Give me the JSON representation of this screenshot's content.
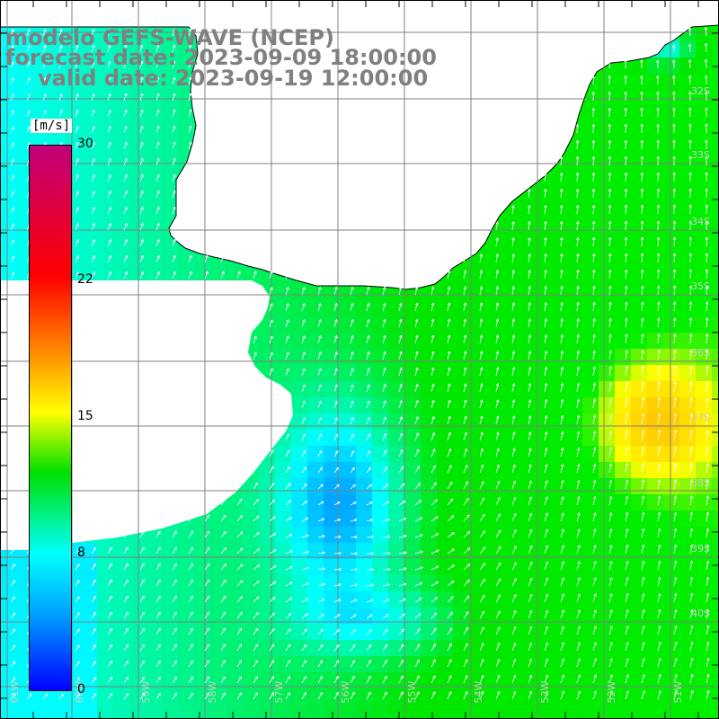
{
  "title": {
    "line1": "modelo GEFS-WAVE (NCEP)",
    "line2": "forecast date: 2023-09-09 18:00:00",
    "line3": "valid date: 2023-09-19 12:00:00"
  },
  "colorbar": {
    "unit": "[m/s]",
    "ticks": [
      "30",
      "22",
      "15",
      "8",
      "0"
    ],
    "range": [
      0,
      30
    ],
    "colors": [
      "#c0007a",
      "#ff0000",
      "#ff8c00",
      "#ffff00",
      "#00e000",
      "#00ffff",
      "#00a0ff",
      "#0000ff"
    ]
  },
  "map": {
    "lat_labels": [
      "32S",
      "33S",
      "34S",
      "35S",
      "36S",
      "37S",
      "38S",
      "39S",
      "40S"
    ],
    "lon_labels": [
      "61W",
      "60W",
      "59W",
      "58W",
      "57W",
      "56W",
      "55W",
      "54W",
      "53W",
      "52W",
      "51W"
    ],
    "land_color": "#ffffff",
    "grid_color": "#808080",
    "arrow_color": "#ffffff"
  }
}
